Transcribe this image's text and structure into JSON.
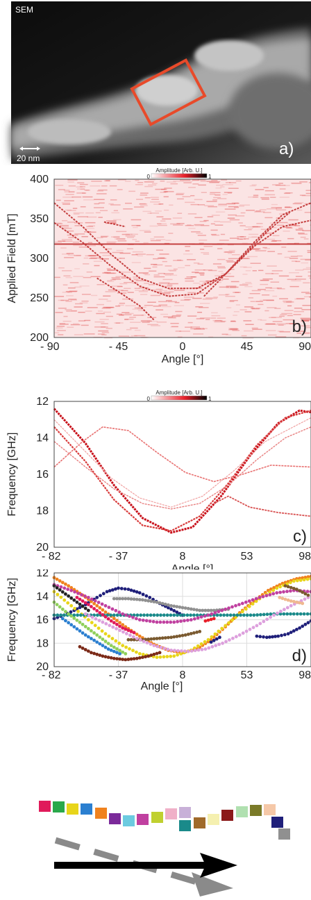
{
  "figure": {
    "sem": {
      "label": "SEM",
      "scale_bar": "20 nm",
      "panel_letter": "a)"
    },
    "colorbar_label": "Amplitude [Arb. U.]",
    "colorbar_min": "0",
    "colorbar_max": "1"
  },
  "chart_data": [
    {
      "type": "heatmap",
      "panel_letter": "b)",
      "xlabel": "Angle [°]",
      "ylabel": "Applied Field [mT]",
      "xlim": [
        -90,
        90
      ],
      "ylim": [
        200,
        400
      ],
      "x_tick_labels": [
        "- 90",
        "- 45",
        "0",
        "45",
        "90"
      ],
      "x_ticks": [
        -90,
        -45,
        0,
        45,
        90
      ],
      "y_tick_labels": [
        "400",
        "350",
        "300",
        "250",
        "200"
      ],
      "y_ticks": [
        400,
        350,
        300,
        250,
        200
      ],
      "colormap": [
        "#ffffff",
        "#e8202a",
        "#000000"
      ]
    },
    {
      "type": "heatmap",
      "panel_letter": "c)",
      "xlabel": "Angle [°]",
      "ylabel": "Frequency [GHz]",
      "xlim": [
        -82,
        98
      ],
      "ylim": [
        20,
        12
      ],
      "x_tick_labels": [
        "- 82",
        "- 37",
        "8",
        "53",
        "98"
      ],
      "x_ticks": [
        -82,
        -37,
        8,
        53,
        98
      ],
      "y_tick_labels": [
        "12",
        "14",
        "16",
        "18",
        "20"
      ],
      "y_ticks": [
        12,
        14,
        16,
        18,
        20
      ],
      "colormap": [
        "#ffffff",
        "#e8202a",
        "#000000"
      ]
    },
    {
      "type": "scatter",
      "panel_letter": "d)",
      "xlabel": "Angle [°]",
      "ylabel": "Frequency [GHz]",
      "xlim": [
        -82,
        98
      ],
      "ylim": [
        20,
        12
      ],
      "x_tick_labels": [
        "- 82",
        "- 37",
        "8",
        "53",
        "98"
      ],
      "x_ticks": [
        -82,
        -37,
        8,
        53,
        98
      ],
      "y_tick_labels": [
        "12",
        "14",
        "16",
        "18",
        "20"
      ],
      "y_ticks": [
        12,
        14,
        16,
        18,
        20
      ],
      "grid": true,
      "series": [
        {
          "color": "#1f1f7a",
          "x": [
            -82,
            -75,
            -68,
            -60,
            -52,
            -45,
            -37,
            -30,
            -22,
            -15,
            -8,
            0,
            8
          ],
          "y": [
            15.9,
            15.6,
            15.2,
            14.7,
            14.1,
            13.6,
            13.3,
            13.4,
            13.7,
            14.1,
            14.6,
            15.1,
            15.6
          ]
        },
        {
          "color": "#1f1f7a",
          "x": [
            60,
            67,
            75,
            82,
            90,
            98
          ],
          "y": [
            17.4,
            17.5,
            17.4,
            17.2,
            16.7,
            16.1
          ]
        },
        {
          "color": "#f0821e",
          "x": [
            -82,
            -72,
            -62,
            -52,
            -42,
            -32,
            -22,
            -12,
            -2,
            8,
            18,
            28,
            38,
            48,
            58,
            68,
            78,
            88,
            98
          ],
          "y": [
            12.4,
            13.1,
            13.9,
            14.8,
            15.7,
            16.6,
            17.4,
            18.1,
            18.6,
            18.8,
            18.5,
            17.7,
            16.6,
            15.4,
            14.4,
            13.5,
            12.9,
            12.5,
            12.3
          ]
        },
        {
          "color": "#e8d51a",
          "x": [
            -82,
            -70,
            -58,
            -46,
            -34,
            -22,
            -10,
            2,
            14,
            26,
            38,
            50,
            62,
            74,
            86,
            98
          ],
          "y": [
            13.6,
            14.8,
            16.0,
            17.2,
            18.2,
            18.9,
            19.2,
            19.1,
            18.6,
            17.7,
            16.5,
            15.3,
            14.2,
            13.3,
            12.7,
            12.5
          ]
        },
        {
          "color": "#7b2a18",
          "x": [
            -64,
            -56,
            -48,
            -40,
            -32,
            -24,
            -16,
            -8
          ],
          "y": [
            18.3,
            18.8,
            19.1,
            19.3,
            19.4,
            19.3,
            19.1,
            18.8
          ]
        },
        {
          "color": "#1a8a8a",
          "x": [
            -82,
            -68,
            -54,
            -40,
            -26,
            -12,
            2,
            16,
            30,
            44,
            58,
            72,
            86,
            98
          ],
          "y": [
            15.6,
            15.6,
            15.6,
            15.6,
            15.6,
            15.6,
            15.6,
            15.6,
            15.6,
            15.6,
            15.6,
            15.5,
            15.5,
            15.5
          ]
        },
        {
          "color": "#7a5a30",
          "x": [
            -30,
            -20,
            -10,
            0,
            10,
            20
          ],
          "y": [
            17.7,
            17.7,
            17.6,
            17.5,
            17.3,
            17.0
          ]
        },
        {
          "color": "#909090",
          "x": [
            -40,
            -30,
            -20,
            -10,
            0,
            10,
            20,
            30,
            40
          ],
          "y": [
            14.2,
            14.2,
            14.3,
            14.5,
            14.8,
            15.0,
            15.2,
            15.2,
            15.1
          ]
        },
        {
          "color": "#c040a0",
          "x": [
            -82,
            -70,
            -58,
            -46,
            -34,
            -22,
            -10,
            2,
            14,
            26,
            38,
            50,
            62,
            74,
            86,
            98
          ],
          "y": [
            13.0,
            13.5,
            14.1,
            14.8,
            15.5,
            16.0,
            16.2,
            16.2,
            16.0,
            15.6,
            15.1,
            14.6,
            14.1,
            13.7,
            13.5,
            13.6
          ]
        },
        {
          "color": "#dda0dd",
          "x": [
            -60,
            -48,
            -36,
            -24,
            -12,
            0,
            12,
            24,
            36,
            48,
            60,
            72,
            84,
            96
          ],
          "y": [
            15.5,
            16.2,
            16.9,
            17.6,
            18.2,
            18.6,
            18.7,
            18.5,
            18.0,
            17.3,
            16.5,
            15.6,
            14.8,
            14.1
          ]
        },
        {
          "color": "#8fcf5a",
          "x": [
            -82,
            -72,
            -62,
            -52,
            -42,
            -32
          ],
          "y": [
            14.5,
            15.5,
            16.4,
            17.3,
            18.2,
            18.9
          ]
        },
        {
          "color": "#2b7fd0",
          "x": [
            -76,
            -68,
            -60,
            -52,
            -44,
            -36
          ],
          "y": [
            15.9,
            16.6,
            17.3,
            17.9,
            18.5,
            18.9
          ]
        },
        {
          "color": "#e01a5a",
          "x": [
            -66,
            -58,
            -50,
            -42,
            -34,
            -26
          ],
          "y": [
            14.1,
            14.7,
            15.4,
            16.1,
            16.7,
            17.1
          ]
        },
        {
          "color": "#222222",
          "x": [
            -82,
            -74,
            -66,
            -58
          ],
          "y": [
            13.1,
            13.8,
            14.5,
            15.2
          ]
        },
        {
          "color": "#1f1f7a",
          "x": [
            28,
            34
          ],
          "y": [
            17.9,
            17.5
          ]
        },
        {
          "color": "#7a5a30",
          "x": [
            80,
            88,
            96
          ],
          "y": [
            13.1,
            13.4,
            13.9
          ]
        },
        {
          "color": "#e8202a",
          "x": [
            24,
            30
          ],
          "y": [
            16.1,
            15.9
          ]
        },
        {
          "color": "#f0b890",
          "x": [
            76,
            84,
            92
          ],
          "y": [
            14.1,
            14.4,
            14.6
          ]
        }
      ]
    }
  ],
  "legend": {
    "swatches": [
      "#e01a5a",
      "#2aa84a",
      "#e8d51a",
      "#2b7fd0",
      "#f0821e",
      "#7b2a9a",
      "#6ccbe0",
      "#c040a0",
      "#c0d030",
      "#f0b0c8",
      "#c8b0d8",
      "#1a8a8a",
      "#a06a2a",
      "#f5f0b0",
      "#8b1a1a",
      "#b0e0b0",
      "#7a7a28",
      "#f5c8a8",
      "#1f1f7a",
      "#909090"
    ]
  }
}
